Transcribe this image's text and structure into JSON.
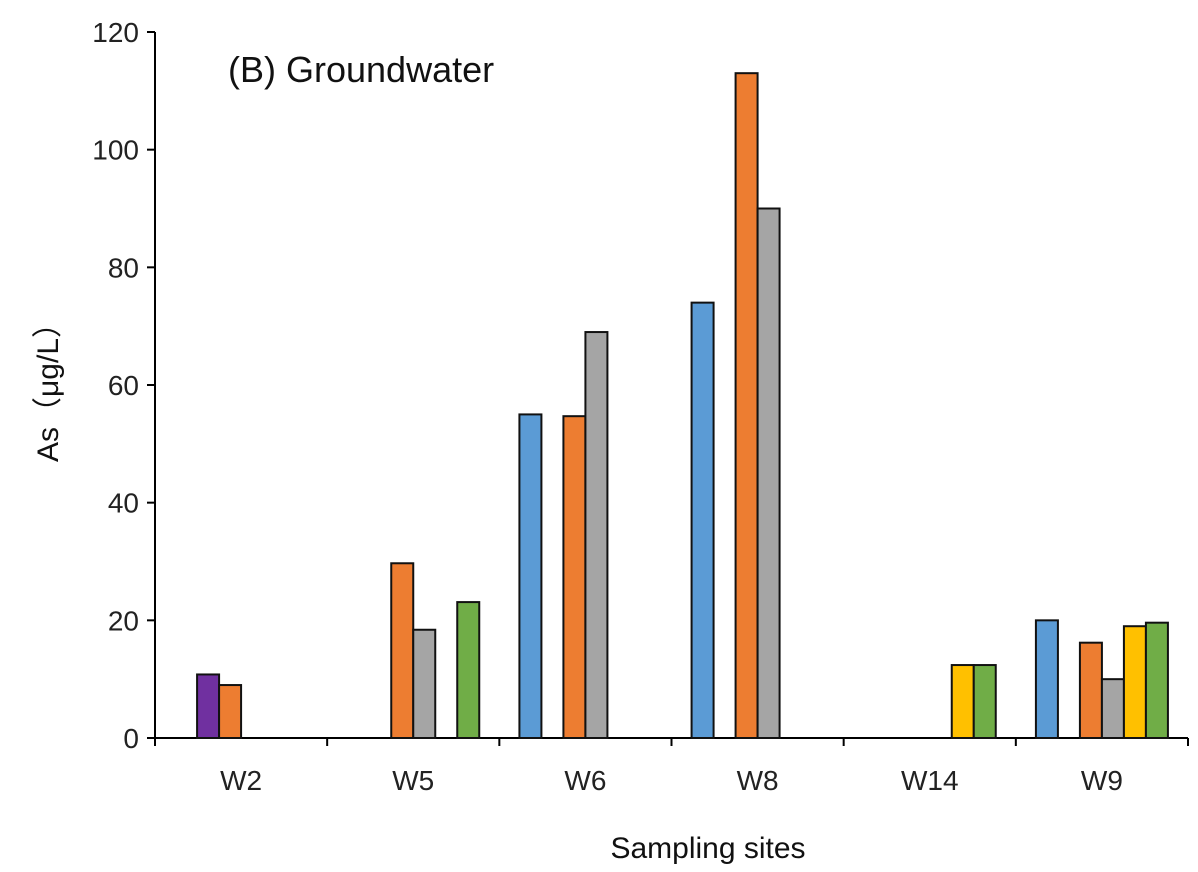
{
  "chart_data": {
    "type": "bar",
    "title": "(B) Groundwater",
    "xlabel": "Sampling sites",
    "ylabel": "As（μg/L）",
    "ylim": [
      0,
      120
    ],
    "yticks": [
      0,
      20,
      40,
      60,
      80,
      100,
      120
    ],
    "legend": "none",
    "grid": false,
    "categories": [
      "W2",
      "W5",
      "W6",
      "W8",
      "W14",
      "W9"
    ],
    "series": [
      {
        "color": "#5B9BD5",
        "values": [
          null,
          null,
          55,
          74,
          null,
          20
        ]
      },
      {
        "color": "#7030A0",
        "values": [
          10.8,
          null,
          null,
          null,
          null,
          null
        ]
      },
      {
        "color": "#ED7D31",
        "values": [
          9,
          29.7,
          54.7,
          113,
          null,
          16.2
        ]
      },
      {
        "color": "#A5A5A5",
        "values": [
          null,
          18.4,
          69,
          90,
          null,
          10
        ]
      },
      {
        "color": "#FFC000",
        "values": [
          null,
          null,
          null,
          null,
          12.4,
          19
        ]
      },
      {
        "color": "#70AD47",
        "values": [
          null,
          23.1,
          null,
          null,
          12.4,
          19.6
        ]
      }
    ]
  }
}
